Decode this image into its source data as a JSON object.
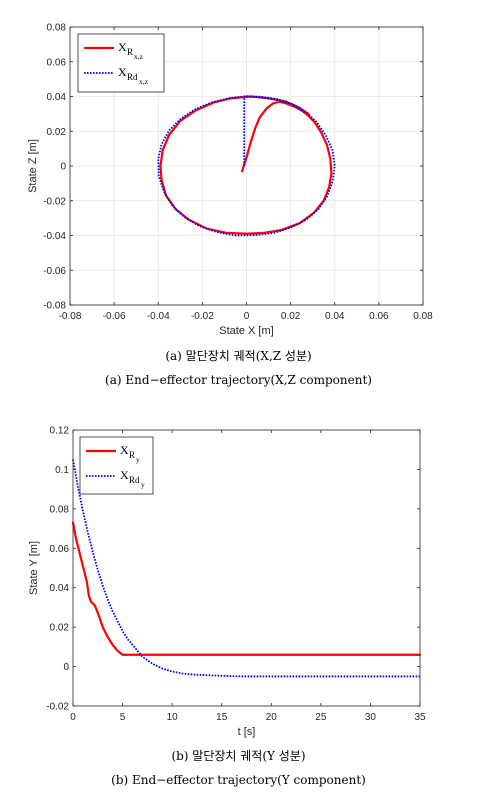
{
  "captions": {
    "a_kr": "(a) 말단장치 궤적(X,Z 성분)",
    "a_en": "(a) End−effector trajectory(X,Z component)",
    "b_kr": "(b) 말단장치 궤적(Y 성분)",
    "b_en": "(b) End−effector trajectory(Y component)"
  },
  "colors": {
    "actual": "#ff0000",
    "desired": "#0000ff",
    "grid": "#e6e6e6",
    "axis": "#262626"
  },
  "chart_data": [
    {
      "type": "line",
      "xlabel": "State X [m]",
      "ylabel": "State Z [m]",
      "xlim": [
        -0.08,
        0.08
      ],
      "ylim": [
        -0.08,
        0.08
      ],
      "xticks": [
        "-0.08",
        "-0.06",
        "-0.04",
        "-0.02",
        "0",
        "0.02",
        "0.04",
        "0.06",
        "0.08"
      ],
      "yticks": [
        "-0.08",
        "-0.06",
        "-0.04",
        "-0.02",
        "0",
        "0.02",
        "0.04",
        "0.06",
        "0.08"
      ],
      "grid": true,
      "legend_position": "top-left",
      "series": [
        {
          "name": "X_{R x,z}",
          "legend_main": "X",
          "legend_sub1": "R",
          "legend_sub2": "x,z",
          "style": "solid",
          "points": [
            [
              -0.002,
              -0.003
            ],
            [
              0,
              0.005
            ],
            [
              0.002,
              0.014
            ],
            [
              0.004,
              0.022
            ],
            [
              0.006,
              0.028
            ],
            [
              0.009,
              0.033
            ],
            [
              0.012,
              0.036
            ],
            [
              0.015,
              0.037
            ],
            [
              0.018,
              0.036
            ],
            [
              0.022,
              0.034
            ],
            [
              0.025,
              0.032
            ],
            [
              0.028,
              0.029
            ],
            [
              0.031,
              0.025
            ],
            [
              0.034,
              0.019
            ],
            [
              0.0365,
              0.012
            ],
            [
              0.038,
              0.004
            ],
            [
              0.0385,
              -0.004
            ],
            [
              0.0375,
              -0.012
            ],
            [
              0.035,
              -0.02
            ],
            [
              0.0305,
              -0.027
            ],
            [
              0.024,
              -0.033
            ],
            [
              0.016,
              -0.0368
            ],
            [
              0.008,
              -0.0385
            ],
            [
              0,
              -0.039
            ],
            [
              -0.009,
              -0.0385
            ],
            [
              -0.018,
              -0.036
            ],
            [
              -0.026,
              -0.031
            ],
            [
              -0.032,
              -0.025
            ],
            [
              -0.0365,
              -0.017
            ],
            [
              -0.0385,
              -0.008
            ],
            [
              -0.039,
              0
            ],
            [
              -0.038,
              0.009
            ],
            [
              -0.035,
              0.018
            ],
            [
              -0.03,
              0.026
            ],
            [
              -0.023,
              0.032
            ],
            [
              -0.015,
              0.0365
            ],
            [
              -0.007,
              0.039
            ],
            [
              0.002,
              0.04
            ],
            [
              0.01,
              0.039
            ],
            [
              0.018,
              0.037
            ],
            [
              0.024,
              0.0335
            ],
            [
              0.028,
              0.03
            ]
          ]
        },
        {
          "name": "X_{Rd x,z}",
          "legend_main": "X",
          "legend_sub1": "Rd",
          "legend_sub2": "x,z",
          "style": "dotted",
          "points": [
            [
              -0.001,
              0.0
            ],
            [
              -0.001,
              0.04
            ],
            [
              0.007,
              0.0395
            ],
            [
              0.014,
              0.038
            ],
            [
              0.021,
              0.0355
            ],
            [
              0.027,
              0.031
            ],
            [
              0.032,
              0.025
            ],
            [
              0.036,
              0.0175
            ],
            [
              0.039,
              0.009
            ],
            [
              0.04,
              0
            ],
            [
              0.039,
              -0.009
            ],
            [
              0.0365,
              -0.0175
            ],
            [
              0.0325,
              -0.025
            ],
            [
              0.027,
              -0.031
            ],
            [
              0.02,
              -0.0355
            ],
            [
              0.0125,
              -0.0385
            ],
            [
              0.004,
              -0.0398
            ],
            [
              -0.005,
              -0.04
            ],
            [
              -0.0135,
              -0.038
            ],
            [
              -0.0215,
              -0.0345
            ],
            [
              -0.028,
              -0.0295
            ],
            [
              -0.0335,
              -0.023
            ],
            [
              -0.0375,
              -0.0145
            ],
            [
              -0.0398,
              -0.0055
            ],
            [
              -0.04,
              0.004
            ],
            [
              -0.0385,
              0.0125
            ],
            [
              -0.035,
              0.0205
            ],
            [
              -0.03,
              0.027
            ],
            [
              -0.0235,
              0.0325
            ],
            [
              -0.016,
              0.0365
            ],
            [
              -0.008,
              0.039
            ],
            [
              0,
              0.0402
            ],
            [
              0.007,
              0.0398
            ],
            [
              0.014,
              0.0385
            ],
            [
              0.021,
              0.0355
            ],
            [
              0.026,
              0.031
            ]
          ]
        }
      ]
    },
    {
      "type": "line",
      "xlabel": "t [s]",
      "ylabel": "State Y [m]",
      "xlim": [
        0,
        35
      ],
      "ylim": [
        -0.02,
        0.12
      ],
      "xticks": [
        "0",
        "5",
        "10",
        "15",
        "20",
        "25",
        "30",
        "35"
      ],
      "yticks": [
        "-0.02",
        "0",
        "0.02",
        "0.04",
        "0.06",
        "0.08",
        "0.1",
        "0.12"
      ],
      "grid": false,
      "legend_position": "top-left",
      "series": [
        {
          "name": "X_{R y}",
          "legend_main": "X",
          "legend_sub1": "R",
          "legend_sub2": "y",
          "style": "solid",
          "points": [
            [
              0,
              0.073
            ],
            [
              0.3,
              0.065
            ],
            [
              0.7,
              0.057
            ],
            [
              1.1,
              0.049
            ],
            [
              1.4,
              0.043
            ],
            [
              1.6,
              0.036
            ],
            [
              1.8,
              0.033
            ],
            [
              2.2,
              0.031
            ],
            [
              2.6,
              0.026
            ],
            [
              3.0,
              0.02
            ],
            [
              3.5,
              0.015
            ],
            [
              4.0,
              0.011
            ],
            [
              4.5,
              0.008
            ],
            [
              5.0,
              0.006
            ],
            [
              5.5,
              0.006
            ],
            [
              10,
              0.006
            ],
            [
              15,
              0.006
            ],
            [
              20,
              0.006
            ],
            [
              25,
              0.006
            ],
            [
              30,
              0.006
            ],
            [
              35,
              0.006
            ]
          ]
        },
        {
          "name": "X_{Rd y}",
          "legend_main": "X",
          "legend_sub1": "Rd",
          "legend_sub2": "y",
          "style": "dotted",
          "points": [
            [
              0,
              0.105
            ],
            [
              0.5,
              0.091
            ],
            [
              1,
              0.079
            ],
            [
              1.5,
              0.068
            ],
            [
              2,
              0.058
            ],
            [
              2.5,
              0.049
            ],
            [
              3,
              0.041
            ],
            [
              3.5,
              0.034
            ],
            [
              4,
              0.028
            ],
            [
              4.5,
              0.023
            ],
            [
              5,
              0.018
            ],
            [
              5.5,
              0.014
            ],
            [
              6,
              0.011
            ],
            [
              7,
              0.005
            ],
            [
              8,
              0.0015
            ],
            [
              9,
              -0.001
            ],
            [
              10,
              -0.0025
            ],
            [
              11,
              -0.0035
            ],
            [
              12,
              -0.004
            ],
            [
              14,
              -0.0045
            ],
            [
              17,
              -0.005
            ],
            [
              20,
              -0.005
            ],
            [
              25,
              -0.005
            ],
            [
              30,
              -0.005
            ],
            [
              35,
              -0.005
            ]
          ]
        }
      ]
    }
  ]
}
